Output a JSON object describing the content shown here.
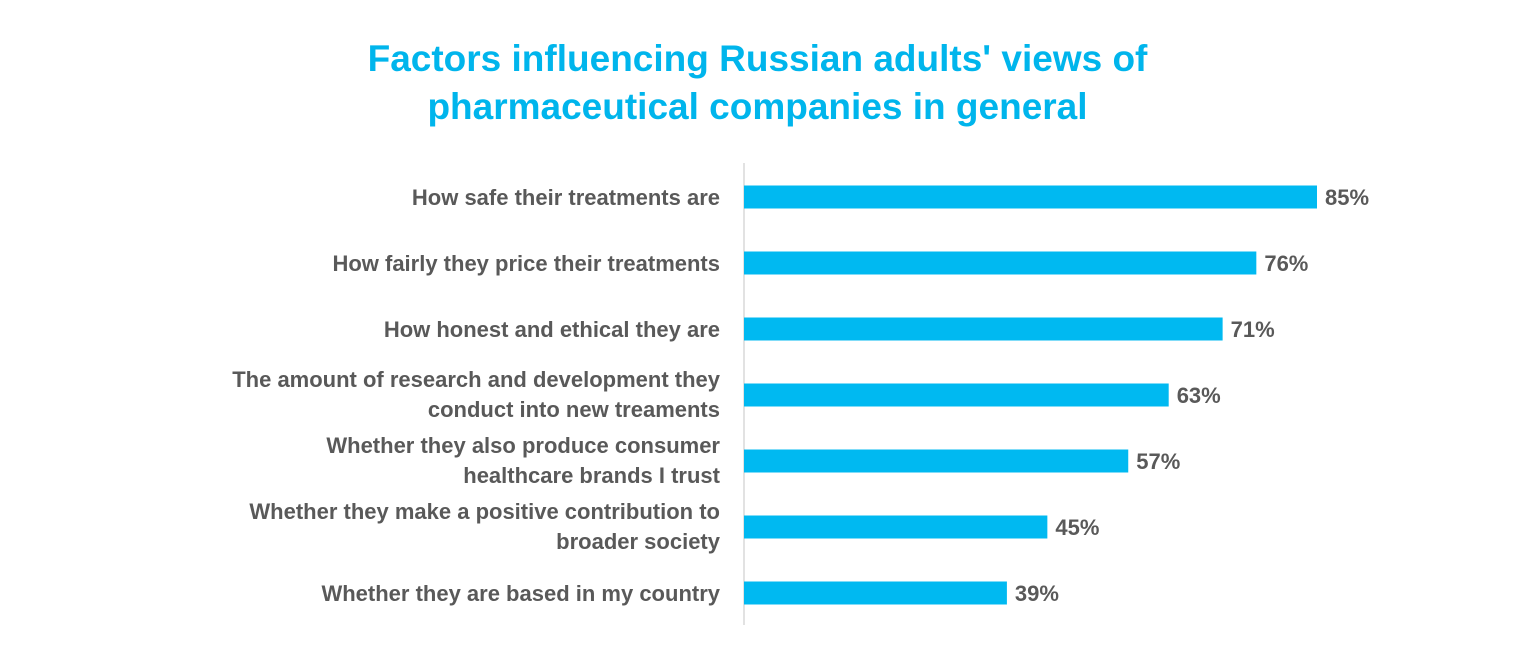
{
  "chart_data": {
    "type": "bar",
    "orientation": "horizontal",
    "title_lines": [
      "Factors influencing Russian adults' views of",
      "pharmaceutical companies in general"
    ],
    "categories": [
      [
        "How safe their treatments are"
      ],
      [
        "How fairly they price their treatments"
      ],
      [
        "How honest and ethical they are"
      ],
      [
        "The amount of research and development they",
        "conduct into new treaments"
      ],
      [
        "Whether they also produce consumer",
        "healthcare brands I trust"
      ],
      [
        "Whether they make a positive contribution to",
        "broader society"
      ],
      [
        "Whether they are based in my country"
      ]
    ],
    "values": [
      85,
      76,
      71,
      63,
      57,
      45,
      39
    ],
    "value_labels": [
      "85%",
      "76%",
      "71%",
      "63%",
      "57%",
      "45%",
      "39%"
    ],
    "xlim": [
      0,
      100
    ],
    "bar_color": "#00b9f1",
    "text_color": "#595959"
  }
}
